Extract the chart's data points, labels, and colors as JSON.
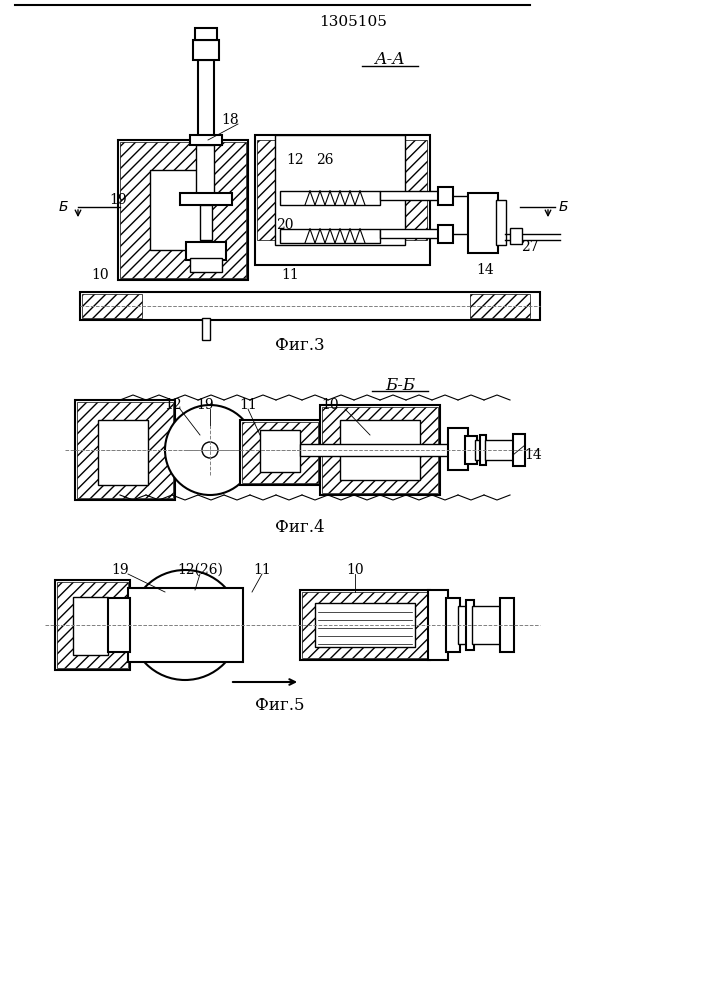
{
  "title": "1305105",
  "fig3_label": "Фиг.3",
  "fig4_label": "Фиг.4",
  "fig5_label": "Фиг.5",
  "section_aa": "А-А",
  "section_bb": "Б-Б",
  "bg_color": "#ffffff",
  "line_color": "#000000",
  "hatch_color": "#000000",
  "fig3_numbers": [
    "18",
    "12",
    "26",
    "20",
    "Б",
    "Б",
    "19",
    "10",
    "11",
    "14",
    "27"
  ],
  "fig4_numbers": [
    "12",
    "19",
    "11",
    "10",
    "14"
  ],
  "fig5_numbers": [
    "19",
    "12(26)",
    "11",
    "10"
  ]
}
